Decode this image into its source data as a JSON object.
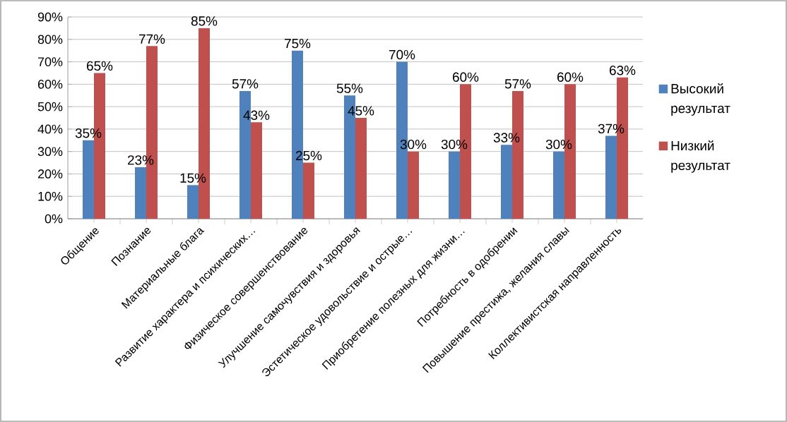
{
  "chart_data": {
    "type": "bar",
    "categories": [
      "Общение",
      "Познание",
      "Материальные блага",
      "Развитие характера и психических…",
      "Физическое совершенствование",
      "Улучшение самочувствия и здоровья",
      "Эстетическое удовольствие и острые…",
      "Приобретение полезных для жизни…",
      "Потребность в одобрении",
      "Повышение престижа, желания славы",
      "Коллективистская направленность"
    ],
    "series": [
      {
        "name": "Высокий результат",
        "color": "#4f81bd",
        "values": [
          35,
          23,
          15,
          57,
          75,
          55,
          70,
          30,
          33,
          30,
          37
        ],
        "value_labels": [
          "35%",
          "23%",
          "15%",
          "57%",
          "75%",
          "55%",
          "70%",
          "30%",
          "33%",
          "30%",
          "37%"
        ]
      },
      {
        "name": "Низкий результат",
        "color": "#c0504d",
        "values": [
          65,
          77,
          85,
          43,
          25,
          45,
          30,
          60,
          57,
          60,
          63
        ],
        "value_labels": [
          "65%",
          "77%",
          "85%",
          "43%",
          "25%",
          "45%",
          "30%",
          "60%",
          "57%",
          "60%",
          "63%"
        ]
      }
    ],
    "ylim": [
      0,
      90
    ],
    "yticks": [
      {
        "value": 0,
        "label": "0%"
      },
      {
        "value": 10,
        "label": "10%"
      },
      {
        "value": 20,
        "label": "20%"
      },
      {
        "value": 30,
        "label": "30%"
      },
      {
        "value": 40,
        "label": "40%"
      },
      {
        "value": 50,
        "label": "50%"
      },
      {
        "value": 60,
        "label": "60%"
      },
      {
        "value": 70,
        "label": "70%"
      },
      {
        "value": 80,
        "label": "80%"
      },
      {
        "value": 90,
        "label": "90%"
      }
    ],
    "grid": "y",
    "legend": "right"
  }
}
